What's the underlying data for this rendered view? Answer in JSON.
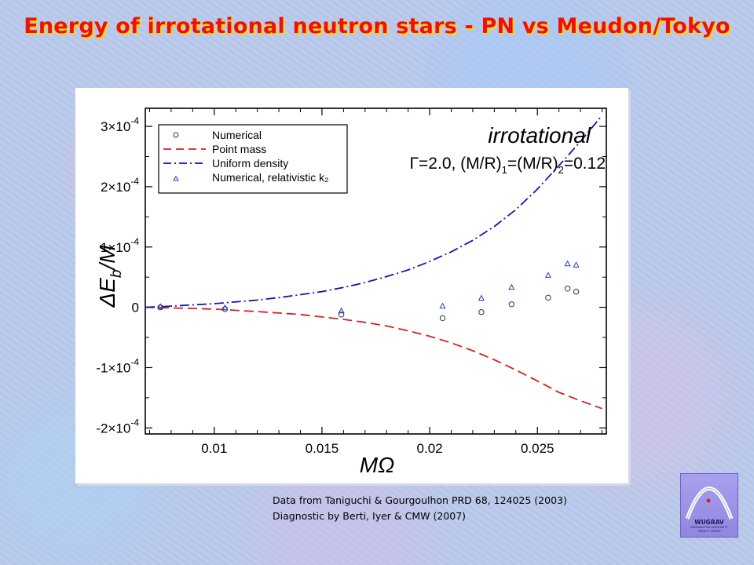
{
  "slide": {
    "title": "Energy of irrotational neutron stars - PN vs Meudon/Tokyo",
    "credit_line1": "Data from Taniguchi & Gourgoulhon PRD 68, 124025 (2003)",
    "credit_line2": "Diagnostic by Berti, Iyer & CMW (2007)",
    "logo_text": "WUGRAV",
    "logo_subtext": [
      "WASHINGTON UNIVERSITY",
      "GRAVITY GROUP"
    ],
    "colors": {
      "title": "#ee1010",
      "title_shadow": "#ffd700"
    }
  },
  "chart_data": {
    "type": "scatter",
    "title": "",
    "xlabel": "MΩ",
    "ylabel": "ΔE_b/M",
    "xlim": [
      0.0068,
      0.0282
    ],
    "ylim": [
      -0.00021,
      0.00033
    ],
    "x_ticks": [
      {
        "value": 0.01,
        "label": "0.01"
      },
      {
        "value": 0.015,
        "label": "0.015"
      },
      {
        "value": 0.02,
        "label": "0.02"
      },
      {
        "value": 0.025,
        "label": "0.025"
      }
    ],
    "y_ticks": [
      {
        "value": -0.0002,
        "mant": "-2×10",
        "exp": "-4"
      },
      {
        "value": -0.0001,
        "mant": "-1×10",
        "exp": "-4"
      },
      {
        "value": 0,
        "mant": "0",
        "exp": ""
      },
      {
        "value": 0.0001,
        "mant": "1×10",
        "exp": "-4"
      },
      {
        "value": 0.0002,
        "mant": "2×10",
        "exp": "-4"
      },
      {
        "value": 0.0003,
        "mant": "3×10",
        "exp": "-4"
      }
    ],
    "annotations": {
      "label": "irrotational",
      "params_prefix": "Γ=2.0, (M/R)",
      "params_sub1": "1",
      "params_mid": "=(M/R)",
      "params_sub2": "2",
      "params_suffix": "=0.12"
    },
    "legend_position": "top-left",
    "series": [
      {
        "name": "Numerical",
        "kind": "marker",
        "marker": "circle",
        "color": "#333333",
        "x": [
          0.0075,
          0.0105,
          0.0159,
          0.0206,
          0.0224,
          0.0238,
          0.0255,
          0.0264,
          0.0268
        ],
        "y": [
          0.0,
          -3e-06,
          -1.2e-05,
          -1.8e-05,
          -8e-06,
          5e-06,
          1.6e-05,
          3.1e-05,
          2.6e-05
        ]
      },
      {
        "name": "Point mass",
        "kind": "line",
        "style": "dashed",
        "color": "#d42020",
        "x": [
          0.0068,
          0.008,
          0.009,
          0.01,
          0.011,
          0.012,
          0.013,
          0.014,
          0.015,
          0.016,
          0.017,
          0.018,
          0.019,
          0.02,
          0.021,
          0.022,
          0.023,
          0.024,
          0.025,
          0.026,
          0.027,
          0.028
        ],
        "y": [
          0.0,
          -1e-06,
          -2e-06,
          -3e-06,
          -5e-06,
          -7e-06,
          -9.5e-06,
          -1.2e-05,
          -1.6e-05,
          -2e-05,
          -2.5e-05,
          -3.1e-05,
          -3.9e-05,
          -4.8e-05,
          -5.9e-05,
          -7.2e-05,
          -8.7e-05,
          -0.000104,
          -0.000122,
          -0.000141,
          -0.000155,
          -0.000168
        ]
      },
      {
        "name": "Uniform density",
        "kind": "line",
        "style": "dashdot",
        "color": "#1515b0",
        "x": [
          0.0068,
          0.008,
          0.009,
          0.01,
          0.011,
          0.012,
          0.013,
          0.014,
          0.015,
          0.016,
          0.017,
          0.018,
          0.019,
          0.02,
          0.021,
          0.022,
          0.023,
          0.024,
          0.025,
          0.026,
          0.027,
          0.028
        ],
        "y": [
          0.0,
          2e-06,
          4e-06,
          6e-06,
          9e-06,
          1.2e-05,
          1.6e-05,
          2.1e-05,
          2.6e-05,
          3.3e-05,
          4.1e-05,
          5.1e-05,
          6.2e-05,
          7.6e-05,
          9.2e-05,
          0.000111,
          0.000134,
          0.000162,
          0.000196,
          0.000235,
          0.000275,
          0.000318
        ]
      },
      {
        "name": "Numerical, relativistic k₂",
        "kind": "marker",
        "marker": "triangle",
        "color": "#1a3fc0",
        "x": [
          0.0075,
          0.0105,
          0.0159,
          0.0206,
          0.0224,
          0.0238,
          0.0255,
          0.0264,
          0.0268
        ],
        "y": [
          1e-06,
          -1e-06,
          -6e-06,
          2e-06,
          1.5e-05,
          3.3e-05,
          5.3e-05,
          7.2e-05,
          7e-05
        ]
      }
    ]
  }
}
